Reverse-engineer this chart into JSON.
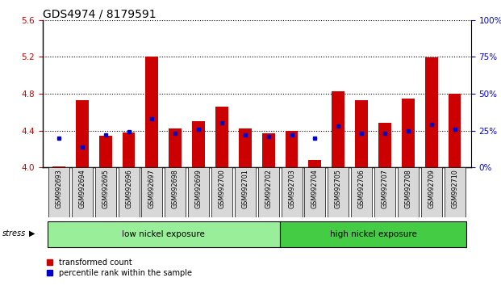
{
  "title": "GDS4974 / 8179591",
  "samples": [
    "GSM992693",
    "GSM992694",
    "GSM992695",
    "GSM992696",
    "GSM992697",
    "GSM992698",
    "GSM992699",
    "GSM992700",
    "GSM992701",
    "GSM992702",
    "GSM992703",
    "GSM992704",
    "GSM992705",
    "GSM992706",
    "GSM992707",
    "GSM992708",
    "GSM992709",
    "GSM992710"
  ],
  "transformed_count": [
    4.01,
    4.73,
    4.34,
    4.38,
    5.2,
    4.42,
    4.5,
    4.66,
    4.42,
    4.37,
    4.4,
    4.08,
    4.83,
    4.73,
    4.48,
    4.75,
    5.19,
    4.8
  ],
  "percentile_rank": [
    20,
    14,
    22,
    24,
    33,
    23,
    26,
    30,
    22,
    21,
    22,
    20,
    28,
    23,
    23,
    25,
    29,
    26
  ],
  "ylim_left": [
    4.0,
    5.6
  ],
  "ylim_right": [
    0,
    100
  ],
  "right_ticks": [
    0,
    25,
    50,
    75,
    100
  ],
  "left_ticks": [
    4.0,
    4.4,
    4.8,
    5.2,
    5.6
  ],
  "bar_color": "#cc0000",
  "dot_color": "#0000cc",
  "background_color": "#ffffff",
  "low_nickel_label": "low nickel exposure",
  "high_nickel_label": "high nickel exposure",
  "low_nickel_indices": [
    0,
    9
  ],
  "high_nickel_indices": [
    10,
    17
  ],
  "low_nickel_color": "#99ee99",
  "high_nickel_color": "#44cc44",
  "stress_label": "stress",
  "legend_red": "transformed count",
  "legend_blue": "percentile rank within the sample",
  "tick_label_color": "#cc0000",
  "right_tick_color": "#0000cc",
  "title_fontsize": 10,
  "bar_width": 0.55,
  "label_bg_color": "#d8d8d8"
}
